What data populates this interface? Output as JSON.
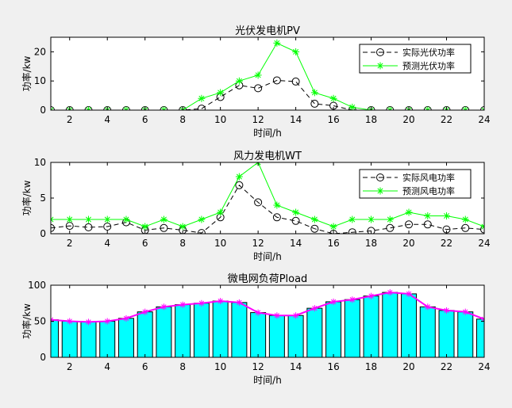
{
  "chart_data": [
    {
      "type": "line",
      "title": "光伏发电机PV",
      "xlabel": "时间/h",
      "ylabel": "功率/kw",
      "xlim": [
        1,
        24
      ],
      "ylim": [
        0,
        25
      ],
      "xticks": [
        2,
        4,
        6,
        8,
        10,
        12,
        14,
        16,
        18,
        20,
        22,
        24
      ],
      "yticks": [
        0,
        10,
        20
      ],
      "legend_position": "top-right",
      "grid": false,
      "x": [
        1,
        2,
        3,
        4,
        5,
        6,
        7,
        8,
        9,
        10,
        11,
        12,
        13,
        14,
        15,
        16,
        17,
        18,
        19,
        20,
        21,
        22,
        23,
        24
      ],
      "series": [
        {
          "name": "实际光伏功率",
          "color": "#000000",
          "style": "dashed-circle",
          "values": [
            0,
            0,
            0,
            0,
            0,
            0,
            0,
            0,
            0.5,
            4.5,
            8.5,
            7.5,
            10.2,
            9.8,
            2.2,
            1.5,
            0,
            0,
            0,
            0,
            0,
            0,
            0,
            0
          ]
        },
        {
          "name": "预测光伏功率",
          "color": "#00ff00",
          "style": "solid-star",
          "values": [
            0,
            0,
            0,
            0,
            0,
            0,
            0,
            0,
            4,
            6,
            10,
            12,
            23,
            20,
            6,
            4,
            1,
            0,
            0,
            0,
            0,
            0,
            0,
            0
          ]
        }
      ]
    },
    {
      "type": "line",
      "title": "风力发电机WT",
      "xlabel": "时间/h",
      "ylabel": "功率/kw",
      "xlim": [
        1,
        24
      ],
      "ylim": [
        0,
        10
      ],
      "xticks": [
        2,
        4,
        6,
        8,
        10,
        12,
        14,
        16,
        18,
        20,
        22,
        24
      ],
      "yticks": [
        0,
        5,
        10
      ],
      "legend_position": "top-right",
      "grid": false,
      "x": [
        1,
        2,
        3,
        4,
        5,
        6,
        7,
        8,
        9,
        10,
        11,
        12,
        13,
        14,
        15,
        16,
        17,
        18,
        19,
        20,
        21,
        22,
        23,
        24
      ],
      "series": [
        {
          "name": "实际风电功率",
          "color": "#000000",
          "style": "dashed-circle",
          "values": [
            0.8,
            1.1,
            0.9,
            1.0,
            1.6,
            0.5,
            0.8,
            0.5,
            0.1,
            2.3,
            6.8,
            4.4,
            2.3,
            1.8,
            0.7,
            0.0,
            0.2,
            0.4,
            0.8,
            1.3,
            1.3,
            0.6,
            0.8,
            0.6
          ]
        },
        {
          "name": "预测风电功率",
          "color": "#00ff00",
          "style": "solid-star",
          "values": [
            2,
            2,
            2,
            2,
            2,
            1,
            2,
            1,
            2,
            3,
            8,
            10,
            4,
            3,
            2,
            1,
            2,
            2,
            2,
            3,
            2.5,
            2.5,
            2,
            1
          ]
        }
      ]
    },
    {
      "type": "bar",
      "title": "微电网负荷Pload",
      "xlabel": "时间/h",
      "ylabel": "功率/kw",
      "xlim": [
        1,
        24
      ],
      "ylim": [
        0,
        100
      ],
      "xticks": [
        2,
        4,
        6,
        8,
        10,
        12,
        14,
        16,
        18,
        20,
        22,
        24
      ],
      "yticks": [
        0,
        50,
        100
      ],
      "grid": false,
      "bar_color": "#00ffff",
      "line_color": "#ff00ff",
      "x": [
        1,
        2,
        3,
        4,
        5,
        6,
        7,
        8,
        9,
        10,
        11,
        12,
        13,
        14,
        15,
        16,
        17,
        18,
        19,
        20,
        21,
        22,
        23,
        24
      ],
      "values": [
        52,
        50,
        49,
        50,
        54,
        63,
        70,
        73,
        75,
        78,
        76,
        62,
        58,
        58,
        68,
        77,
        80,
        85,
        90,
        88,
        70,
        65,
        63,
        53
      ]
    }
  ]
}
